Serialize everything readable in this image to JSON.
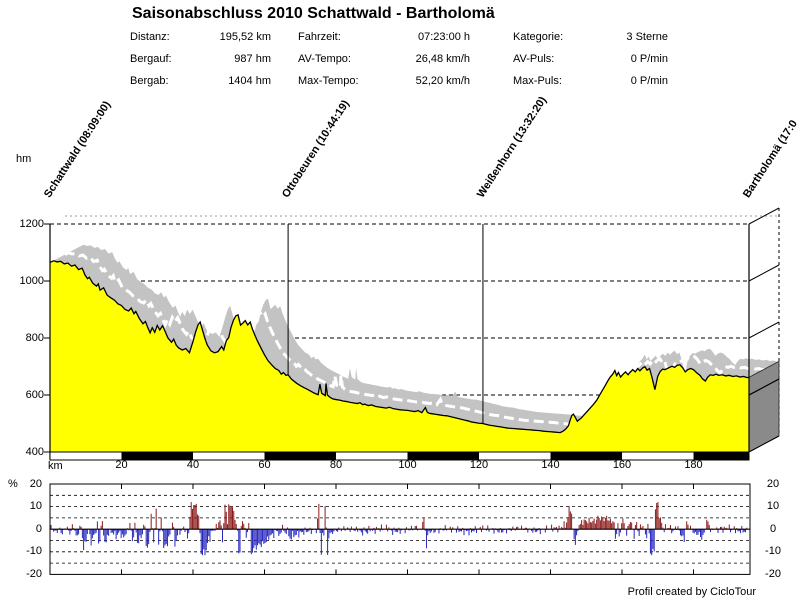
{
  "header": {
    "title": "Saisonabschluss 2010 Schattwald - Bartholomä",
    "stats_columns": [
      {
        "rows": [
          {
            "label": "Distanz:",
            "value": "195,52 km"
          },
          {
            "label": "Bergauf:",
            "value": "987 hm"
          },
          {
            "label": "Bergab:",
            "value": "1404 hm"
          }
        ]
      },
      {
        "rows": [
          {
            "label": "Fahrzeit:",
            "value": "07:23:00 h"
          },
          {
            "label": "AV-Tempo:",
            "value": "26,48 km/h"
          },
          {
            "label": "Max-Tempo:",
            "value": "52,20 km/h"
          }
        ]
      },
      {
        "rows": [
          {
            "label": "Kategorie:",
            "value": "3 Sterne"
          },
          {
            "label": "AV-Puls:",
            "value": "0 P/min"
          },
          {
            "label": "Max-Puls:",
            "value": "0 P/min"
          }
        ]
      }
    ]
  },
  "footer": {
    "credit": "Profil created by CicloTour"
  },
  "chart_data": [
    {
      "type": "area",
      "name": "elevation-profile-3d",
      "ylabel": "hm",
      "xlabel": "km",
      "ylim": [
        400,
        1200
      ],
      "xlim": [
        0,
        195.52
      ],
      "yticks": [
        1200,
        1000,
        800,
        600,
        400
      ],
      "xticks": [
        20,
        40,
        60,
        80,
        100,
        120,
        140,
        160,
        180
      ],
      "grid": "dashed-horizontal",
      "legend_position": "none",
      "waypoints": [
        {
          "label": "Schattwald (08:09:00)",
          "km": 0,
          "line": false
        },
        {
          "label": "Ottobeuren (10:44:19)",
          "km": 66.6,
          "line": true
        },
        {
          "label": "Weißenhorn (13:32:20)",
          "km": 121.1,
          "line": true
        },
        {
          "label": "Bartholomä (17:0",
          "km": 195.52,
          "line": false
        }
      ],
      "colors": {
        "area": "#FFFF00",
        "road_band": "#C3C3C3",
        "road_stripe": "#FFFFFF",
        "end_cap": "#8A8A8A",
        "outline": "#000000",
        "back_grid": "#999999"
      },
      "scalebar_black_segments_km": [
        [
          20,
          40
        ],
        [
          60,
          80
        ],
        [
          100,
          120
        ],
        [
          140,
          160
        ],
        [
          180,
          195.52
        ]
      ],
      "elevation_profile": [
        [
          0,
          1065
        ],
        [
          1,
          1071
        ],
        [
          2,
          1067
        ],
        [
          3,
          1069
        ],
        [
          4,
          1060
        ],
        [
          5,
          1063
        ],
        [
          6,
          1052
        ],
        [
          7,
          1056
        ],
        [
          8,
          1040
        ],
        [
          9,
          1045
        ],
        [
          9.8,
          1021
        ],
        [
          10.5,
          1008
        ],
        [
          11,
          1013
        ],
        [
          12,
          992
        ],
        [
          13,
          982
        ],
        [
          13.5,
          990
        ],
        [
          14,
          968
        ],
        [
          15,
          976
        ],
        [
          16,
          950
        ],
        [
          17,
          941
        ],
        [
          18,
          933
        ],
        [
          19,
          920
        ],
        [
          20,
          914
        ],
        [
          21,
          900
        ],
        [
          22,
          895
        ],
        [
          22.7,
          905
        ],
        [
          23.5,
          885
        ],
        [
          24,
          893
        ],
        [
          25,
          868
        ],
        [
          26,
          850
        ],
        [
          26.7,
          858
        ],
        [
          27.3,
          838
        ],
        [
          28,
          818
        ],
        [
          28.6,
          836
        ],
        [
          29.3,
          820
        ],
        [
          30,
          844
        ],
        [
          30.7,
          828
        ],
        [
          31.5,
          843
        ],
        [
          32.3,
          820
        ],
        [
          33,
          800
        ],
        [
          34,
          785
        ],
        [
          34.6,
          796
        ],
        [
          35.3,
          775
        ],
        [
          36,
          765
        ],
        [
          37,
          758
        ],
        [
          38,
          763
        ],
        [
          39,
          748
        ],
        [
          40,
          788
        ],
        [
          40.7,
          820
        ],
        [
          41.4,
          846
        ],
        [
          42,
          856
        ],
        [
          42.6,
          830
        ],
        [
          43.3,
          800
        ],
        [
          44,
          775
        ],
        [
          45,
          755
        ],
        [
          46,
          748
        ],
        [
          47,
          752
        ],
        [
          48,
          770
        ],
        [
          48.6,
          758
        ],
        [
          49.3,
          790
        ],
        [
          50,
          802
        ],
        [
          50.6,
          836
        ],
        [
          51.3,
          862
        ],
        [
          52,
          878
        ],
        [
          52.6,
          881
        ],
        [
          53.3,
          845
        ],
        [
          54,
          853
        ],
        [
          54.6,
          861
        ],
        [
          55.3,
          846
        ],
        [
          56,
          856
        ],
        [
          56.6,
          832
        ],
        [
          57.3,
          810
        ],
        [
          58,
          790
        ],
        [
          59,
          765
        ],
        [
          60,
          741
        ],
        [
          61,
          720
        ],
        [
          62,
          706
        ],
        [
          63,
          693
        ],
        [
          64,
          686
        ],
        [
          64.7,
          673
        ],
        [
          65.3,
          679
        ],
        [
          66,
          669
        ],
        [
          66.6,
          671
        ],
        [
          67.5,
          656
        ],
        [
          68.3,
          648
        ],
        [
          69,
          641
        ],
        [
          70,
          633
        ],
        [
          71,
          626
        ],
        [
          72,
          620
        ],
        [
          73,
          613
        ],
        [
          74,
          606
        ],
        [
          75,
          601
        ],
        [
          75.5,
          638
        ],
        [
          76,
          606
        ],
        [
          77,
          598
        ],
        [
          77.2,
          640
        ],
        [
          77.6,
          600
        ],
        [
          78.3,
          592
        ],
        [
          79,
          587
        ],
        [
          80,
          584
        ],
        [
          81,
          582
        ],
        [
          82,
          579
        ],
        [
          83,
          577
        ],
        [
          84,
          574
        ],
        [
          85,
          572
        ],
        [
          86,
          570
        ],
        [
          86.7,
          573
        ],
        [
          87.5,
          566
        ],
        [
          88,
          568
        ],
        [
          89,
          563
        ],
        [
          90,
          565
        ],
        [
          91,
          560
        ],
        [
          92,
          558
        ],
        [
          93,
          556
        ],
        [
          94,
          554
        ],
        [
          95,
          557
        ],
        [
          96,
          552
        ],
        [
          97,
          550
        ],
        [
          98,
          548
        ],
        [
          99,
          547
        ],
        [
          100,
          546
        ],
        [
          101,
          544
        ],
        [
          102,
          542
        ],
        [
          103,
          545
        ],
        [
          104,
          538
        ],
        [
          105,
          556
        ],
        [
          105.5,
          540
        ],
        [
          106,
          536
        ],
        [
          107,
          534
        ],
        [
          108,
          532
        ],
        [
          109,
          530
        ],
        [
          110,
          528
        ],
        [
          111,
          527
        ],
        [
          112,
          524
        ],
        [
          113,
          521
        ],
        [
          114,
          518
        ],
        [
          115,
          515
        ],
        [
          116,
          512
        ],
        [
          117,
          509
        ],
        [
          118,
          505
        ],
        [
          119,
          503
        ],
        [
          120,
          501
        ],
        [
          121,
          500
        ],
        [
          122,
          497
        ],
        [
          123,
          494
        ],
        [
          124,
          492
        ],
        [
          125,
          490
        ],
        [
          126,
          488
        ],
        [
          127,
          486
        ],
        [
          128,
          484
        ],
        [
          129,
          483
        ],
        [
          130,
          482
        ],
        [
          131,
          481
        ],
        [
          132,
          480
        ],
        [
          133,
          479
        ],
        [
          134,
          478
        ],
        [
          135,
          477
        ],
        [
          136,
          476
        ],
        [
          137,
          475
        ],
        [
          138,
          473
        ],
        [
          139,
          472
        ],
        [
          140,
          471
        ],
        [
          141,
          470
        ],
        [
          142,
          469
        ],
        [
          142.7,
          468
        ],
        [
          143.5,
          473
        ],
        [
          144.3,
          481
        ],
        [
          145,
          492
        ],
        [
          145.6,
          516
        ],
        [
          146,
          529
        ],
        [
          146.4,
          533
        ],
        [
          146.9,
          522
        ],
        [
          147.5,
          508
        ],
        [
          148,
          513
        ],
        [
          148.6,
          519
        ],
        [
          149.3,
          529
        ],
        [
          150,
          539
        ],
        [
          151,
          553
        ],
        [
          152,
          567
        ],
        [
          153,
          583
        ],
        [
          153.8,
          601
        ],
        [
          154.5,
          616
        ],
        [
          155.3,
          633
        ],
        [
          156,
          649
        ],
        [
          156.7,
          663
        ],
        [
          157.4,
          673
        ],
        [
          158,
          686
        ],
        [
          158.5,
          668
        ],
        [
          159,
          679
        ],
        [
          159.6,
          663
        ],
        [
          160.3,
          673
        ],
        [
          161,
          681
        ],
        [
          161.7,
          671
        ],
        [
          162.2,
          679
        ],
        [
          163,
          689
        ],
        [
          163.7,
          681
        ],
        [
          164.4,
          693
        ],
        [
          165,
          685
        ],
        [
          165.8,
          695
        ],
        [
          166.4,
          699
        ],
        [
          167,
          687
        ],
        [
          167.7,
          693
        ],
        [
          168.4,
          661
        ],
        [
          169.2,
          619
        ],
        [
          170,
          666
        ],
        [
          170.7,
          683
        ],
        [
          171.4,
          691
        ],
        [
          172,
          689
        ],
        [
          173,
          695
        ],
        [
          174,
          701
        ],
        [
          174.7,
          697
        ],
        [
          175.4,
          704
        ],
        [
          176.2,
          706
        ],
        [
          177,
          695
        ],
        [
          177.7,
          681
        ],
        [
          178.4,
          689
        ],
        [
          179.2,
          693
        ],
        [
          180,
          689
        ],
        [
          180.8,
          679
        ],
        [
          181.8,
          669
        ],
        [
          182.5,
          657
        ],
        [
          183.3,
          649
        ],
        [
          184,
          663
        ],
        [
          184.7,
          671
        ],
        [
          185.5,
          669
        ],
        [
          186.3,
          673
        ],
        [
          187,
          669
        ],
        [
          188,
          671
        ],
        [
          189,
          667
        ],
        [
          190,
          669
        ],
        [
          191,
          665
        ],
        [
          192,
          667
        ],
        [
          193,
          663
        ],
        [
          194,
          665
        ],
        [
          195,
          661
        ],
        [
          195.52,
          662
        ]
      ]
    },
    {
      "type": "bar",
      "name": "gradient-percent",
      "ylabel": "%",
      "unit": "%",
      "ylim": [
        -20,
        20
      ],
      "yticks_left": [
        20,
        10,
        0,
        -10,
        -20
      ],
      "yticks_right": [
        20,
        10,
        0,
        -10,
        -20
      ],
      "grid_dashed_levels": [
        15,
        10,
        5,
        -5,
        -10,
        -15
      ],
      "zero_line": 0,
      "derived_from": "elevation_profile",
      "colors": {
        "uphill": "#8B1A1A",
        "downhill": "#2525BD"
      }
    }
  ]
}
